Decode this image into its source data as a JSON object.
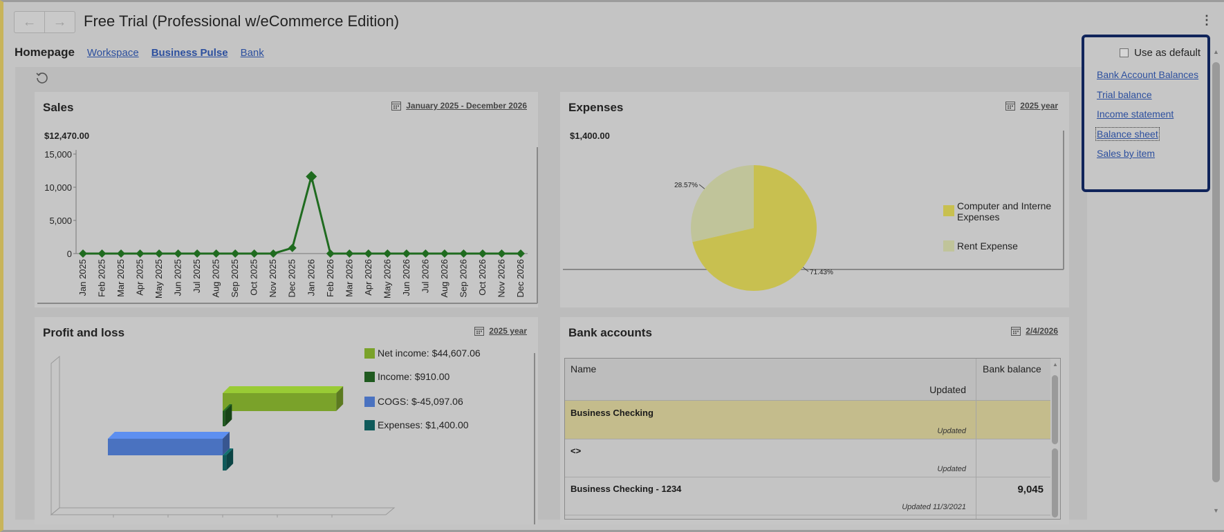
{
  "app": {
    "title": "Free Trial (Professional w/eCommerce Edition)",
    "back": "←",
    "forward": "→",
    "more": "⋮"
  },
  "tabs": {
    "home": "Homepage",
    "workspace": "Workspace",
    "business_pulse": "Business Pulse",
    "bank": "Bank"
  },
  "sales": {
    "title": "Sales",
    "period": "January 2025 - December 2026",
    "total": "$12,470.00",
    "chart_data": {
      "type": "line",
      "categories": [
        "Jan 2025",
        "Feb 2025",
        "Mar 2025",
        "Apr 2025",
        "May 2025",
        "Jun 2025",
        "Jul 2025",
        "Aug 2025",
        "Sep 2025",
        "Oct 2025",
        "Nov 2025",
        "Dec 2025",
        "Jan 2026",
        "Feb 2026",
        "Mar 2026",
        "Apr 2026",
        "May 2026",
        "Jun 2026",
        "Jul 2026",
        "Aug 2026",
        "Sep 2026",
        "Oct 2026",
        "Nov 2026",
        "Dec 2026"
      ],
      "values": [
        0,
        0,
        0,
        0,
        0,
        0,
        0,
        0,
        0,
        0,
        0,
        850,
        11620,
        0,
        0,
        0,
        0,
        0,
        0,
        0,
        0,
        0,
        0,
        0
      ],
      "yticks": [
        "15,000",
        "10,000",
        "5,000",
        "0"
      ],
      "ylim": [
        0,
        15000
      ],
      "color": "#1f6b1f"
    }
  },
  "expenses": {
    "title": "Expenses",
    "period": "2025 year",
    "total": "$1,400.00",
    "chart_data": {
      "type": "pie",
      "slices": [
        {
          "name": "Computer and Interne Expenses",
          "value": 71.43,
          "label": "71.43%",
          "color": "#c8c050"
        },
        {
          "name": "Rent Expense",
          "value": 28.57,
          "label": "28.57%",
          "color": "#c0c49a"
        }
      ],
      "legend": [
        "Computer and Interne",
        "Expenses",
        "Rent Expense"
      ]
    }
  },
  "pnl": {
    "title": "Profit and loss",
    "period": "2025 year",
    "chart_data": {
      "type": "bar",
      "orientation": "horizontal-3d",
      "series": [
        {
          "name": "Net income: $44,607.06",
          "value": 44607.06,
          "color": "#7aa22a"
        },
        {
          "name": "Income: $910.00",
          "value": 910.0,
          "color": "#1f5a1f"
        },
        {
          "name": "COGS: $-45,097.06",
          "value": -45097.06,
          "color": "#4a72c0"
        },
        {
          "name": "Expenses: $1,400.00",
          "value": 1400.0,
          "color": "#0f5a5a"
        }
      ]
    }
  },
  "bank": {
    "title": "Bank accounts",
    "period": "2/4/2026",
    "col_name": "Name",
    "col_balance": "Bank balance",
    "col_updated": "Updated",
    "rows": [
      {
        "name": "Business Checking",
        "updated": "Updated",
        "balance": ""
      },
      {
        "name": "<>",
        "updated": "Updated",
        "balance": ""
      },
      {
        "name": "Business Checking - 1234",
        "updated": "Updated 11/3/2021",
        "balance": "9,045"
      }
    ]
  },
  "reports": {
    "default_label": "Use as default",
    "links": [
      "Bank Account Balances",
      "Trial balance",
      "Income statement",
      "Balance sheet",
      "Sales by item"
    ]
  }
}
